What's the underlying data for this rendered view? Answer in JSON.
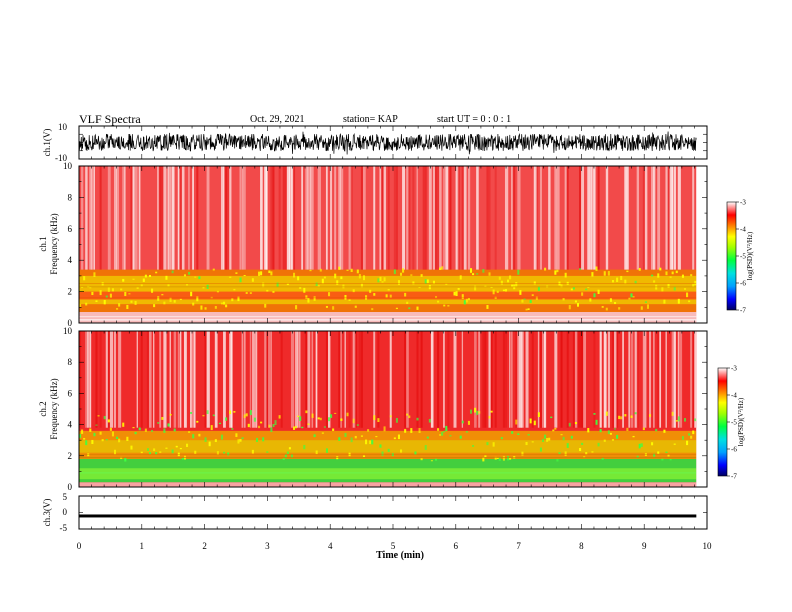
{
  "header": {
    "title": "VLF Spectra",
    "date": "Oct. 29, 2021",
    "station": "station= KAP",
    "start": "start  UT =   0 : 0  : 1"
  },
  "chart_data": [
    {
      "type": "line",
      "name": "ch1-waveform",
      "ylabel": "ch.1(V)",
      "ylim": [
        -10,
        10
      ],
      "y_ticks": [
        "10",
        "-10"
      ],
      "xlim": [
        0,
        10
      ],
      "data_xmax": 9.83,
      "signal": "noise band roughly -5 to 5 V"
    },
    {
      "type": "heatmap",
      "name": "ch1-spectrogram",
      "ylabel_line1": "ch.1",
      "ylabel_line2": "Frequency (kHz)",
      "ylim": [
        0,
        10
      ],
      "y_ticks": [
        "0",
        "2",
        "4",
        "6",
        "8",
        "10"
      ],
      "xlim": [
        0,
        10
      ],
      "data_xmax": 9.83,
      "colorbar": {
        "label": "log(PSD)(V²/Hz)",
        "range": [
          -7,
          -3
        ],
        "ticks": [
          "-3",
          "-4",
          "-5",
          "-6",
          "-7"
        ]
      }
    },
    {
      "type": "heatmap",
      "name": "ch2-spectrogram",
      "ylabel_line1": "ch.2",
      "ylabel_line2": "Frequency (kHz)",
      "ylim": [
        0,
        10
      ],
      "y_ticks": [
        "0",
        "2",
        "4",
        "6",
        "8",
        "10"
      ],
      "xlim": [
        0,
        10
      ],
      "data_xmax": 9.83,
      "colorbar": {
        "label": "log(PSD)(V²/Hz)",
        "range": [
          -7,
          -3
        ],
        "ticks": [
          "-3",
          "-4",
          "-5",
          "-6",
          "-7"
        ]
      }
    },
    {
      "type": "line",
      "name": "ch3-waveform",
      "ylabel": "ch.3(V)",
      "ylim": [
        -5,
        5
      ],
      "y_ticks": [
        "5",
        "0",
        "-5"
      ],
      "xlim": [
        0,
        10
      ],
      "data_xmax": 9.83,
      "signal": "thick band near -1 V",
      "xlabel": "Time (min)",
      "x_ticks": [
        "0",
        "1",
        "2",
        "3",
        "4",
        "5",
        "6",
        "7",
        "8",
        "9",
        "10"
      ]
    }
  ]
}
